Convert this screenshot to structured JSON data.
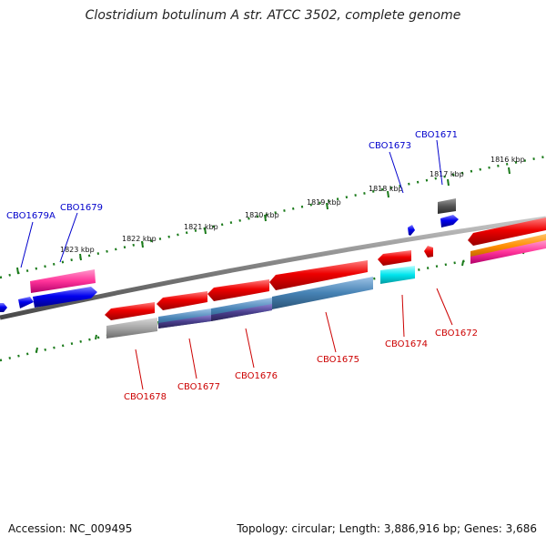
{
  "title": "Clostridium botulinum A str. ATCC 3502, complete genome",
  "footer": {
    "accession": "Accession: NC_009495",
    "summary": "Topology: circular; Length: 3,886,916 bp; Genes: 3,686"
  },
  "scale_labels": [
    "1823 kbp",
    "1822 kbp",
    "1821 kbp",
    "1820 kbp",
    "1819 kbp",
    "1818 kbp",
    "1817 kbp",
    "1816 kbp"
  ],
  "genes": [
    {
      "id": "CBO1679A",
      "strand": "forward"
    },
    {
      "id": "CBO1679",
      "strand": "forward"
    },
    {
      "id": "CBO1673",
      "strand": "forward"
    },
    {
      "id": "CBO1671",
      "strand": "forward"
    },
    {
      "id": "CBO1678",
      "strand": "reverse"
    },
    {
      "id": "CBO1677",
      "strand": "reverse"
    },
    {
      "id": "CBO1676",
      "strand": "reverse"
    },
    {
      "id": "CBO1675",
      "strand": "reverse"
    },
    {
      "id": "CBO1674",
      "strand": "reverse"
    },
    {
      "id": "CBO1672",
      "strand": "reverse"
    }
  ],
  "colors": {
    "forward_label": "#0000cc",
    "reverse_label": "#cc0000",
    "cds_forward": "#0000ee",
    "cds_reverse": "#ee0000",
    "pink_track": "#ff3399",
    "steel_track": "#4682b4",
    "cyan_track": "#00e5ee",
    "orange_track": "#ff8c00",
    "grey_track": "#999999",
    "backbone": "#7f7f7f",
    "ticks": "#1a7a1a"
  }
}
